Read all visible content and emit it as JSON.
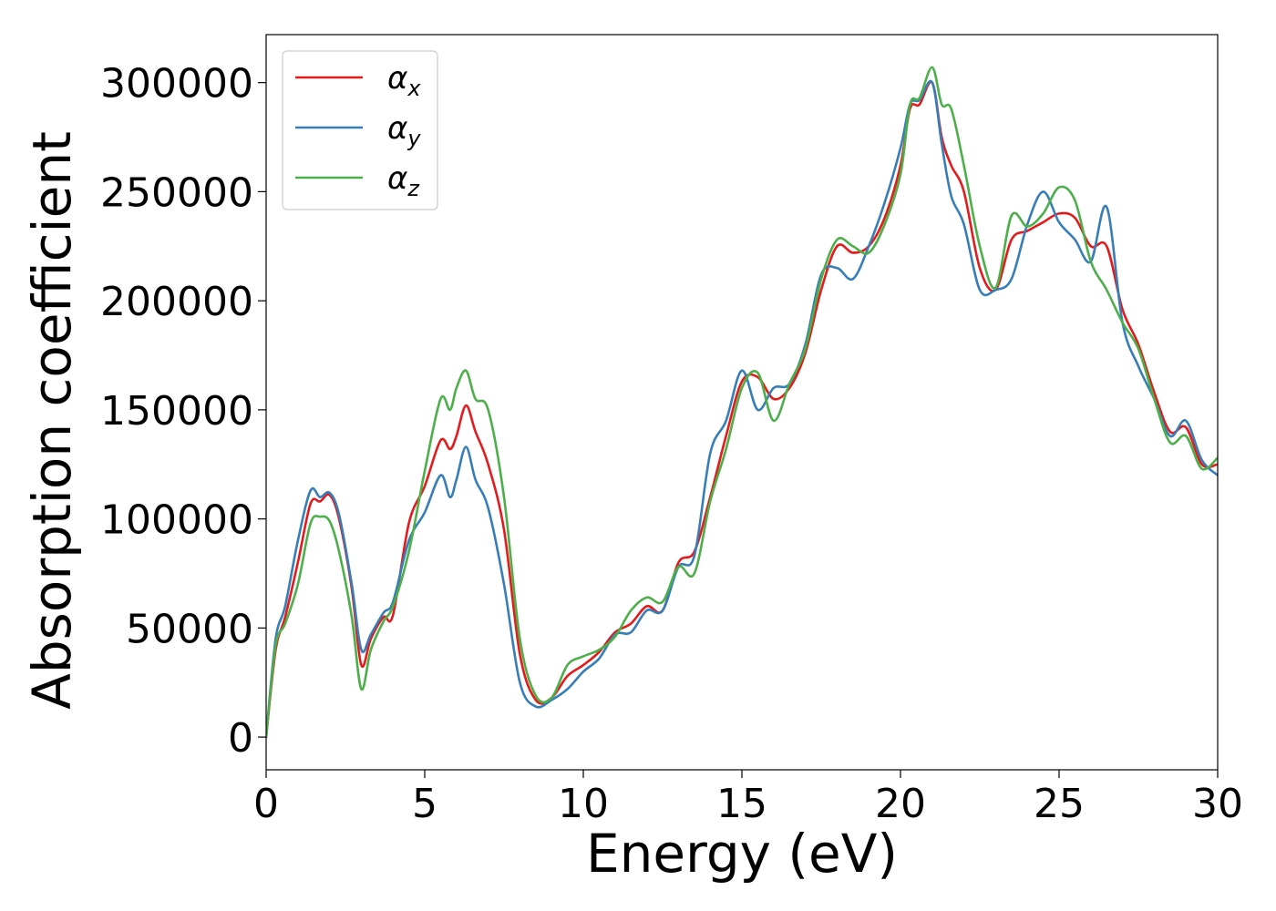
{
  "chart_data": {
    "type": "line",
    "xlabel": "Energy (eV)",
    "ylabel": "Absorption coefficient",
    "xlim": [
      0,
      30
    ],
    "ylim": [
      -15000,
      322000
    ],
    "xticks": [
      0,
      5,
      10,
      15,
      20,
      25,
      30
    ],
    "yticks": [
      0,
      50000,
      100000,
      150000,
      200000,
      250000,
      300000
    ],
    "grid": false,
    "legend_position": "top-left",
    "series": [
      {
        "name": "α",
        "subscript": "x",
        "color": "#e41a1c",
        "x": [
          0,
          0.3,
          0.6,
          1.0,
          1.4,
          1.7,
          2.0,
          2.3,
          2.7,
          3.0,
          3.3,
          3.7,
          4.0,
          4.5,
          5.0,
          5.5,
          5.8,
          6.0,
          6.3,
          6.6,
          7.0,
          7.5,
          8.0,
          8.5,
          9.0,
          9.5,
          10.0,
          10.5,
          11.0,
          11.5,
          12.0,
          12.5,
          13.0,
          13.5,
          14.0,
          14.5,
          15.0,
          15.5,
          16.0,
          16.5,
          17.0,
          17.5,
          18.0,
          18.5,
          19.0,
          19.5,
          20.0,
          20.3,
          20.6,
          21.0,
          21.3,
          21.6,
          22.0,
          22.5,
          23.0,
          23.5,
          24.0,
          24.5,
          25.0,
          25.5,
          26.0,
          26.5,
          27.0,
          27.5,
          28.0,
          28.5,
          29.0,
          29.5,
          30.0
        ],
        "values": [
          0,
          40000,
          55000,
          80000,
          107000,
          108000,
          111000,
          100000,
          68000,
          33000,
          45000,
          55000,
          56000,
          98000,
          115000,
          136000,
          132000,
          138000,
          152000,
          140000,
          125000,
          95000,
          38000,
          17000,
          18000,
          28000,
          33000,
          39000,
          48000,
          52000,
          60000,
          58000,
          80000,
          85000,
          110000,
          138000,
          163000,
          165000,
          155000,
          160000,
          176000,
          205000,
          225000,
          222000,
          225000,
          238000,
          262000,
          288000,
          290000,
          300000,
          275000,
          262000,
          250000,
          215000,
          205000,
          228000,
          232000,
          236000,
          240000,
          238000,
          225000,
          225000,
          196000,
          180000,
          158000,
          140000,
          142000,
          125000,
          125000
        ]
      },
      {
        "name": "α",
        "subscript": "y",
        "color": "#377eb8",
        "x": [
          0,
          0.3,
          0.6,
          1.0,
          1.4,
          1.7,
          2.0,
          2.3,
          2.7,
          3.0,
          3.3,
          3.7,
          4.0,
          4.5,
          5.0,
          5.5,
          5.8,
          6.0,
          6.3,
          6.6,
          7.0,
          7.5,
          8.0,
          8.5,
          9.0,
          9.5,
          10.0,
          10.5,
          11.0,
          11.5,
          12.0,
          12.5,
          13.0,
          13.5,
          14.0,
          14.5,
          15.0,
          15.5,
          16.0,
          16.5,
          17.0,
          17.5,
          18.0,
          18.5,
          19.0,
          19.5,
          20.0,
          20.3,
          20.6,
          21.0,
          21.3,
          21.6,
          22.0,
          22.5,
          23.0,
          23.5,
          24.0,
          24.5,
          25.0,
          25.5,
          26.0,
          26.5,
          27.0,
          27.5,
          28.0,
          28.5,
          29.0,
          29.5,
          30.0
        ],
        "values": [
          0,
          45000,
          60000,
          90000,
          113000,
          110000,
          112000,
          102000,
          70000,
          40000,
          47000,
          57000,
          62000,
          90000,
          103000,
          120000,
          110000,
          118000,
          133000,
          118000,
          105000,
          70000,
          25000,
          14000,
          17000,
          22000,
          30000,
          36000,
          47000,
          48000,
          58000,
          58000,
          78000,
          83000,
          130000,
          145000,
          168000,
          150000,
          160000,
          162000,
          180000,
          212000,
          215000,
          210000,
          225000,
          245000,
          270000,
          290000,
          292000,
          300000,
          272000,
          248000,
          235000,
          205000,
          205000,
          210000,
          235000,
          250000,
          236000,
          228000,
          218000,
          243000,
          190000,
          170000,
          155000,
          138000,
          145000,
          127000,
          120000
        ]
      },
      {
        "name": "α",
        "subscript": "z",
        "color": "#4daf4a",
        "x": [
          0,
          0.3,
          0.6,
          1.0,
          1.4,
          1.7,
          2.0,
          2.3,
          2.7,
          3.0,
          3.3,
          3.7,
          4.0,
          4.5,
          5.0,
          5.5,
          5.8,
          6.0,
          6.3,
          6.6,
          7.0,
          7.5,
          8.0,
          8.5,
          9.0,
          9.5,
          10.0,
          10.5,
          11.0,
          11.5,
          12.0,
          12.5,
          13.0,
          13.5,
          14.0,
          14.5,
          15.0,
          15.5,
          16.0,
          16.5,
          17.0,
          17.5,
          18.0,
          18.5,
          19.0,
          19.5,
          20.0,
          20.3,
          20.6,
          21.0,
          21.3,
          21.6,
          22.0,
          22.5,
          23.0,
          23.5,
          24.0,
          24.5,
          25.0,
          25.5,
          26.0,
          26.5,
          27.0,
          27.5,
          28.0,
          28.5,
          29.0,
          29.5,
          30.0
        ],
        "values": [
          0,
          42000,
          52000,
          70000,
          98000,
          101000,
          99000,
          85000,
          55000,
          22000,
          40000,
          53000,
          60000,
          85000,
          122000,
          155000,
          150000,
          160000,
          168000,
          155000,
          150000,
          110000,
          45000,
          19000,
          18000,
          33000,
          37000,
          40000,
          46000,
          58000,
          64000,
          62000,
          78000,
          75000,
          108000,
          132000,
          160000,
          167000,
          145000,
          162000,
          178000,
          210000,
          228000,
          225000,
          222000,
          235000,
          258000,
          290000,
          293000,
          307000,
          290000,
          288000,
          262000,
          225000,
          206000,
          239000,
          234000,
          240000,
          252000,
          246000,
          218000,
          205000,
          190000,
          178000,
          155000,
          135000,
          138000,
          123000,
          128000
        ]
      }
    ]
  }
}
